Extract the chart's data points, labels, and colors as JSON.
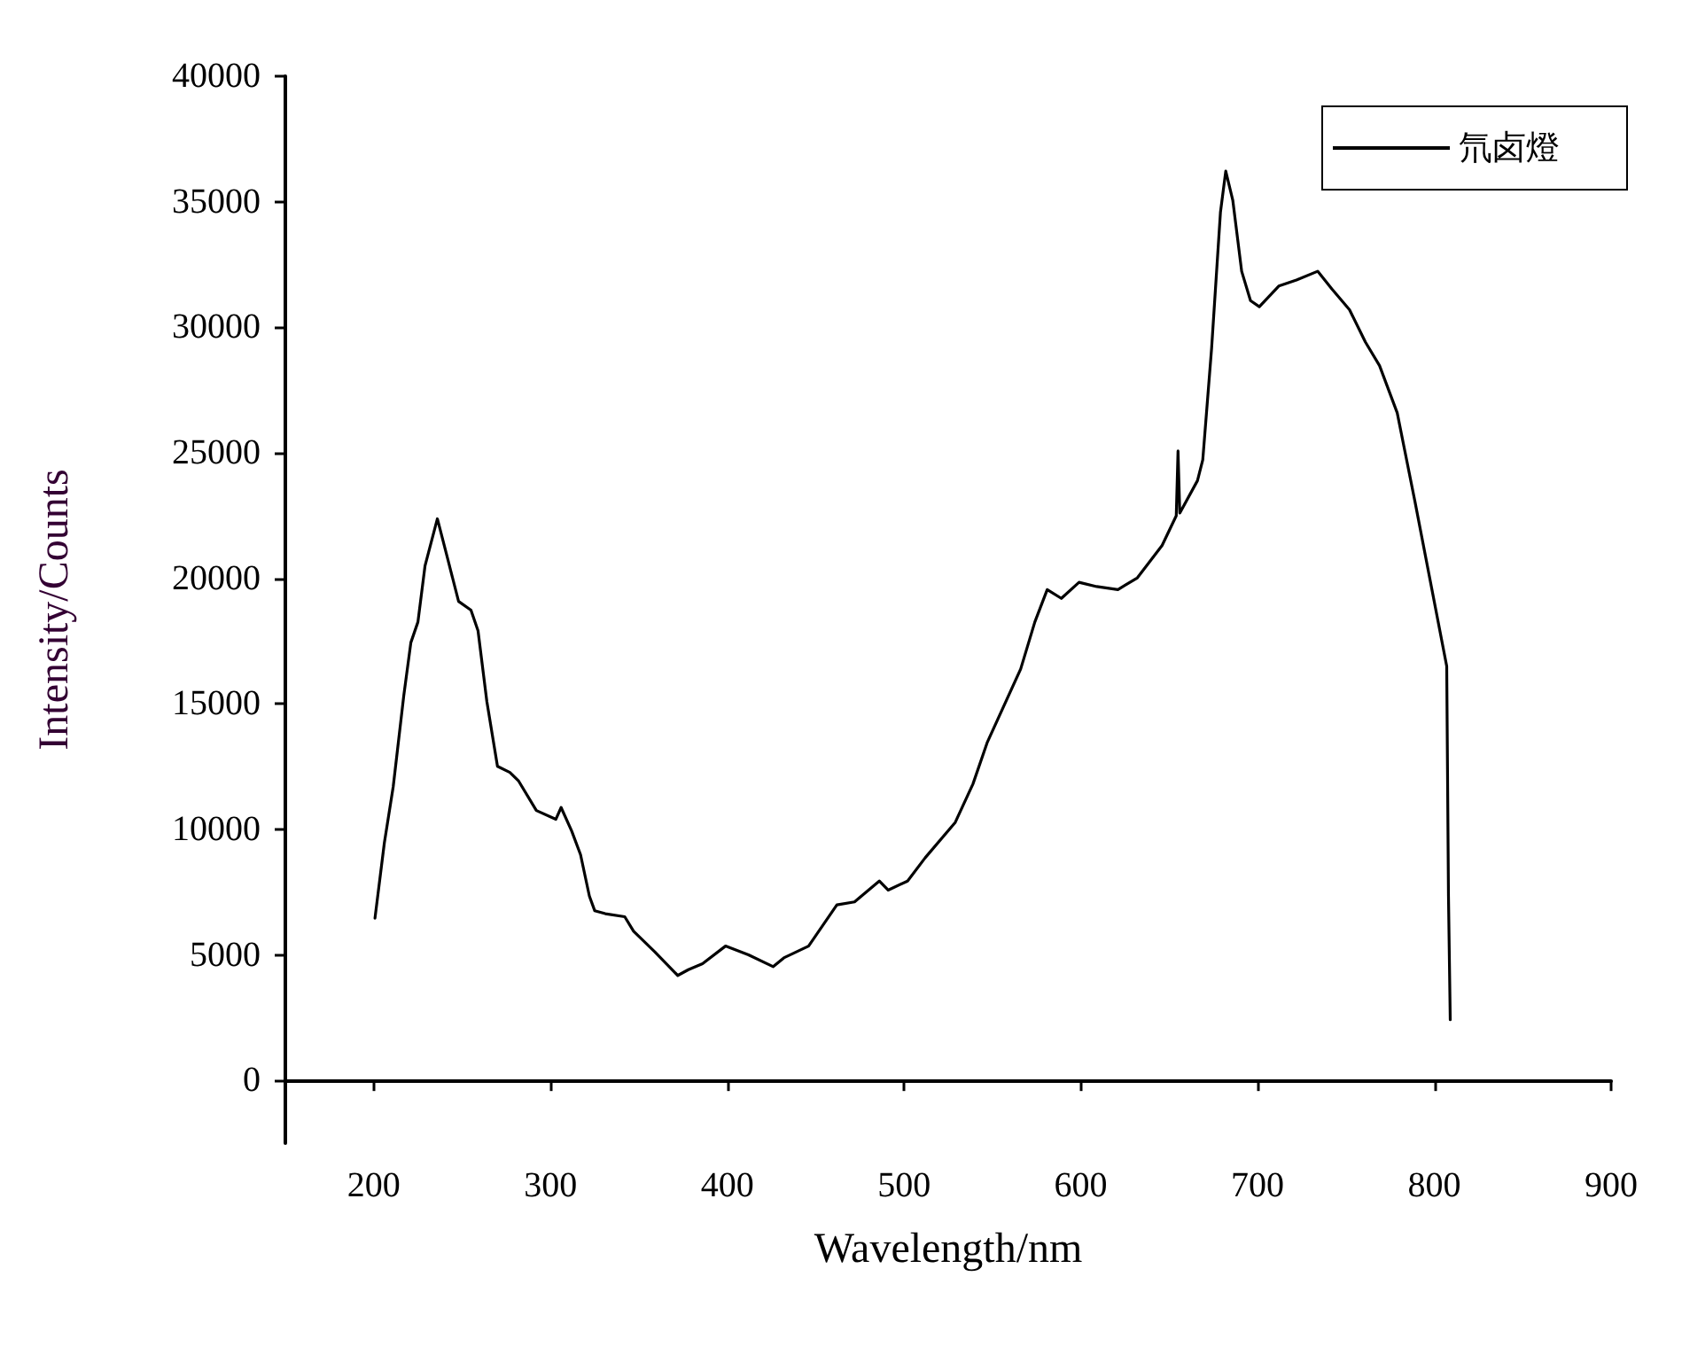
{
  "chart_data": {
    "type": "line",
    "xlabel": "Wavelength/nm",
    "ylabel": "Intensity/Counts",
    "xlim": [
      150,
      900
    ],
    "xticks": [
      200,
      300,
      400,
      500,
      600,
      700,
      800,
      900
    ],
    "ylim": [
      -2500,
      40000
    ],
    "yticks": [
      0,
      5000,
      10000,
      15000,
      20000,
      25000,
      30000,
      35000,
      40000
    ],
    "grid": false,
    "legend": "top right",
    "marker": "none",
    "line_style": "solid",
    "series": [
      {
        "name": "氘卤燈",
        "color": "#000000",
        "x": [
          200.7,
          206,
          211,
          217,
          221,
          225,
          229,
          236,
          242,
          248,
          255,
          259,
          264,
          270,
          277,
          282,
          292,
          303,
          306,
          312,
          317,
          322,
          325,
          331,
          342,
          347,
          359,
          372,
          378,
          386,
          399,
          412,
          426,
          432,
          446,
          462,
          472,
          486,
          491,
          502,
          512,
          529,
          539,
          547,
          566,
          574,
          581,
          589,
          599,
          609,
          621,
          632,
          646,
          654,
          655,
          656,
          666,
          669,
          674,
          679,
          682,
          686,
          691,
          696,
          701,
          712,
          722,
          734,
          742,
          752,
          761,
          769,
          779,
          789,
          807,
          808,
          809
        ],
        "values": [
          6460,
          9460,
          11690,
          15330,
          17440,
          18260,
          20490,
          22370,
          20730,
          19080,
          18730,
          17910,
          15090,
          12510,
          12270,
          11920,
          10750,
          10400,
          10870,
          9930,
          8990,
          7340,
          6760,
          6640,
          6520,
          5940,
          5120,
          4180,
          4410,
          4650,
          5350,
          5000,
          4530,
          4880,
          5350,
          6990,
          7110,
          7940,
          7580,
          7940,
          8870,
          10280,
          11810,
          13450,
          16390,
          18260,
          19550,
          19200,
          19840,
          19670,
          19550,
          20020,
          21310,
          22490,
          25070,
          22600,
          23890,
          24720,
          29170,
          34580,
          36220,
          35050,
          32230,
          31060,
          30820,
          31640,
          31880,
          32230,
          31530,
          30700,
          29410,
          28470,
          26590,
          23070,
          16500,
          7340,
          2420
        ]
      }
    ]
  }
}
